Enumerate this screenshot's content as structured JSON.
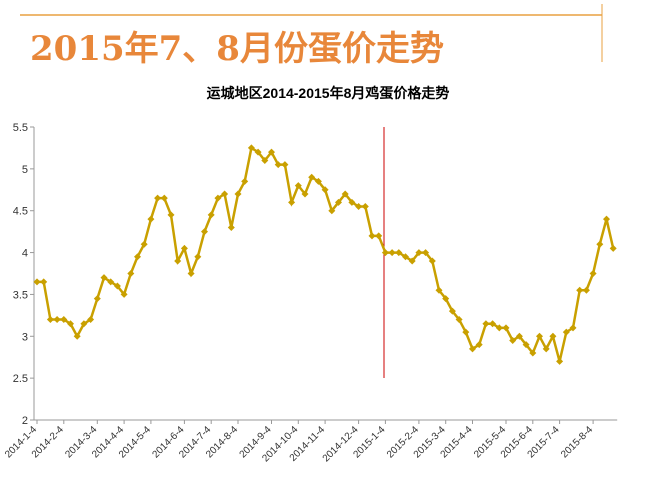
{
  "page_title": "2015年7、8月份蛋价走势",
  "chart_data": {
    "type": "line",
    "title": "运城地区2014-2015年8月鸡蛋价格走势",
    "color": "#c9a000",
    "categories": [
      "2014-1-4",
      null,
      null,
      null,
      "2014-2-4",
      null,
      null,
      null,
      null,
      "2014-3-4",
      null,
      null,
      null,
      "2014-4-4",
      null,
      null,
      null,
      "2014-5-4",
      null,
      null,
      null,
      null,
      "2014-6-4",
      null,
      null,
      null,
      "2014-7-4",
      null,
      null,
      null,
      "2014-8-4",
      null,
      null,
      null,
      null,
      "2014-9-4",
      null,
      null,
      null,
      "2014-10-4",
      null,
      null,
      null,
      "2014-11-4",
      null,
      null,
      null,
      null,
      "2014-12-4",
      null,
      null,
      null,
      "2015-1-4",
      null,
      null,
      null,
      null,
      "2015-2-4",
      null,
      null,
      null,
      "2015-3-4",
      null,
      null,
      null,
      "2015-4-4",
      null,
      null,
      null,
      null,
      "2015-5-4",
      null,
      null,
      null,
      "2015-6-4",
      null,
      null,
      null,
      "2015-7-4",
      null,
      null,
      null,
      null,
      "2015-8-4",
      null,
      null,
      null
    ],
    "values": [
      3.65,
      3.65,
      3.2,
      3.2,
      3.2,
      3.15,
      3.0,
      3.15,
      3.2,
      3.45,
      3.7,
      3.65,
      3.6,
      3.5,
      3.75,
      3.95,
      4.1,
      4.4,
      4.65,
      4.65,
      4.45,
      3.9,
      4.05,
      3.75,
      3.95,
      4.25,
      4.45,
      4.65,
      4.7,
      4.3,
      4.7,
      4.85,
      5.25,
      5.2,
      5.1,
      5.2,
      5.05,
      5.05,
      4.6,
      4.8,
      4.7,
      4.9,
      4.85,
      4.75,
      4.5,
      4.6,
      4.7,
      4.6,
      4.55,
      4.55,
      4.2,
      4.2,
      4.0,
      4.0,
      4.0,
      3.95,
      3.9,
      4.0,
      4.0,
      3.9,
      3.55,
      3.45,
      3.3,
      3.2,
      3.05,
      2.85,
      2.9,
      3.15,
      3.15,
      3.1,
      3.1,
      2.95,
      3.0,
      2.9,
      2.8,
      3.0,
      2.85,
      3.0,
      2.7,
      3.05,
      3.1,
      3.55,
      3.55,
      3.75,
      4.1,
      4.4,
      4.05
    ],
    "ylim": [
      2,
      5.5
    ],
    "yticks": [
      2,
      2.5,
      3,
      3.5,
      4,
      4.5,
      5,
      5.5
    ]
  }
}
